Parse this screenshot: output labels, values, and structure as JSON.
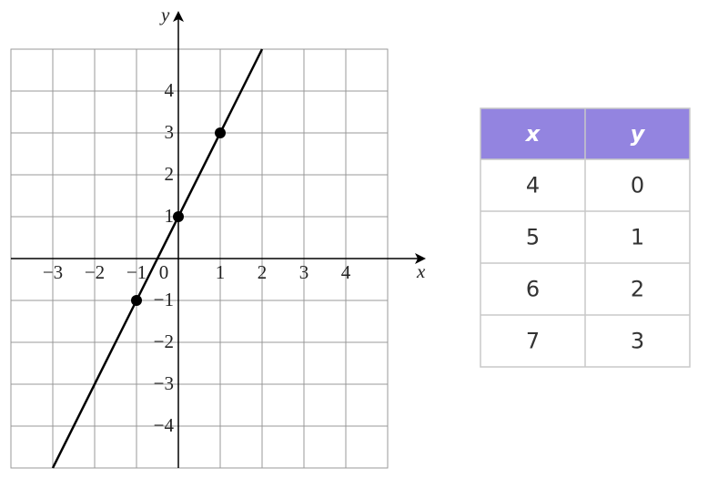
{
  "chart_data": {
    "type": "line",
    "x_label": "x",
    "y_label": "y",
    "xlim": [
      -4,
      5
    ],
    "ylim": [
      -5,
      5
    ],
    "xticks": [
      {
        "value": -3,
        "label": "−3"
      },
      {
        "value": -2,
        "label": "−2"
      },
      {
        "value": -1,
        "label": "−1"
      },
      0,
      1,
      2,
      3,
      4
    ],
    "yticks": [
      4,
      3,
      2,
      1,
      {
        "value": -1,
        "label": "−1"
      },
      {
        "value": -2,
        "label": "−2"
      },
      {
        "value": -3,
        "label": "−3"
      },
      {
        "value": -4,
        "label": "−4"
      }
    ],
    "grid": true,
    "color": "#000000",
    "line": {
      "x": [
        -3,
        2
      ],
      "y": [
        -5,
        5
      ]
    },
    "points": {
      "x": [
        -1,
        0,
        1
      ],
      "y": [
        -1,
        1,
        3
      ]
    }
  },
  "table": {
    "header": [
      "x",
      "y"
    ],
    "rows": [
      [
        "4",
        "0"
      ],
      [
        "5",
        "1"
      ],
      [
        "6",
        "2"
      ],
      [
        "7",
        "3"
      ]
    ],
    "header_color": "#9384e0"
  }
}
